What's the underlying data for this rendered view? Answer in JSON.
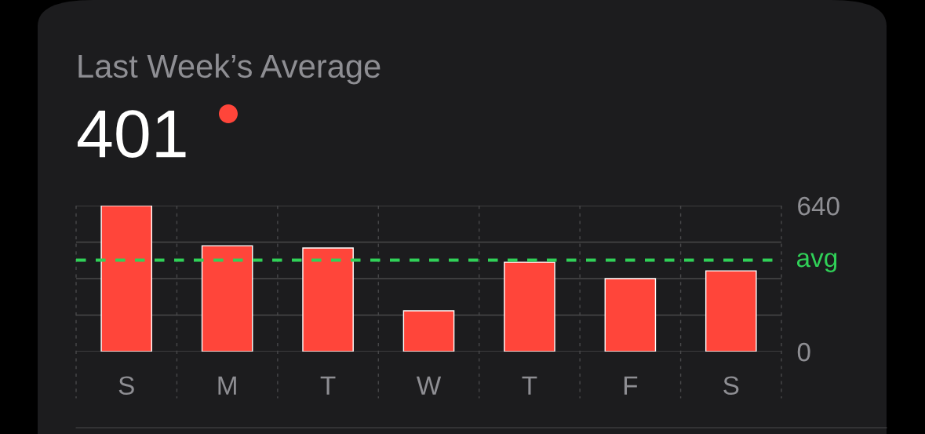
{
  "chart_data": {
    "type": "bar",
    "title": "Last Week’s Average",
    "subtitle": "401",
    "categories": [
      "S",
      "M",
      "T",
      "W",
      "T",
      "F",
      "S"
    ],
    "values": [
      640,
      464,
      454,
      179,
      392,
      320,
      354
    ],
    "color": "#ff453a",
    "ylim": [
      0,
      640
    ],
    "yticks": [
      0,
      {
        "value": 160,
        "label": null
      },
      {
        "value": 320,
        "label": null
      },
      {
        "value": 480,
        "label": null
      },
      640
    ],
    "grid": true,
    "ref_lines": [
      {
        "axis": "y",
        "value": 401,
        "label": "avg",
        "color": "#30d158",
        "line_style": "dashed"
      }
    ]
  }
}
